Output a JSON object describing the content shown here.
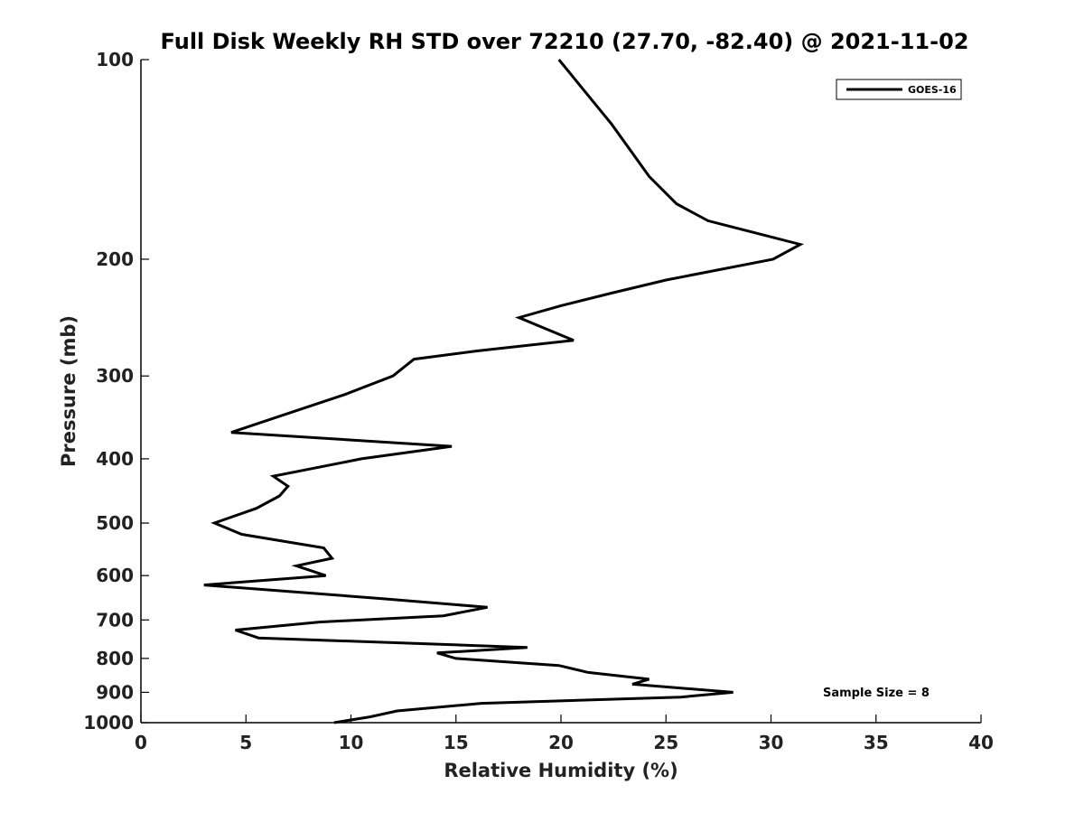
{
  "chart_data": {
    "type": "line",
    "title": "Full Disk Weekly RH STD over 72210 (27.70, -82.40) @ 2021-11-02",
    "xlabel": "Relative Humidity (%)",
    "ylabel": "Pressure (mb)",
    "xlim": [
      0,
      40
    ],
    "ylim": [
      100,
      1000
    ],
    "y_scale": "log",
    "y_reversed": true,
    "x_ticks": [
      0,
      5,
      10,
      15,
      20,
      25,
      30,
      35,
      40
    ],
    "y_ticks": [
      100,
      200,
      300,
      400,
      500,
      600,
      700,
      800,
      900,
      1000
    ],
    "grid": false,
    "legend": "top-right",
    "series": [
      {
        "name": "GOES-16",
        "color": "#000000",
        "points": [
          [
            19.9,
            100
          ],
          [
            22.4,
            125
          ],
          [
            24.2,
            150
          ],
          [
            25.5,
            165
          ],
          [
            27.0,
            175
          ],
          [
            31.4,
            190
          ],
          [
            30.1,
            200
          ],
          [
            25.0,
            215
          ],
          [
            22.4,
            225
          ],
          [
            20.0,
            235
          ],
          [
            18.0,
            245
          ],
          [
            20.6,
            265
          ],
          [
            16.0,
            275
          ],
          [
            13.0,
            283
          ],
          [
            12.0,
            300
          ],
          [
            9.7,
            320
          ],
          [
            6.6,
            345
          ],
          [
            4.3,
            365
          ],
          [
            14.8,
            383
          ],
          [
            10.5,
            400
          ],
          [
            6.3,
            425
          ],
          [
            7.0,
            440
          ],
          [
            6.6,
            455
          ],
          [
            5.5,
            475
          ],
          [
            3.5,
            500
          ],
          [
            4.8,
            520
          ],
          [
            8.7,
            545
          ],
          [
            9.1,
            565
          ],
          [
            7.4,
            580
          ],
          [
            8.8,
            600
          ],
          [
            3.0,
            620
          ],
          [
            11.5,
            650
          ],
          [
            16.5,
            670
          ],
          [
            14.4,
            690
          ],
          [
            8.5,
            705
          ],
          [
            4.5,
            725
          ],
          [
            5.6,
            745
          ],
          [
            18.4,
            770
          ],
          [
            14.1,
            785
          ],
          [
            15.0,
            800
          ],
          [
            19.9,
            820
          ],
          [
            21.3,
            840
          ],
          [
            24.2,
            860
          ],
          [
            23.4,
            875
          ],
          [
            28.2,
            900
          ],
          [
            25.7,
            915
          ],
          [
            16.2,
            935
          ],
          [
            12.2,
            960
          ],
          [
            10.9,
            980
          ],
          [
            9.2,
            1000
          ]
        ]
      }
    ],
    "annotations": [
      {
        "text": "Sample Size = 8"
      }
    ]
  }
}
